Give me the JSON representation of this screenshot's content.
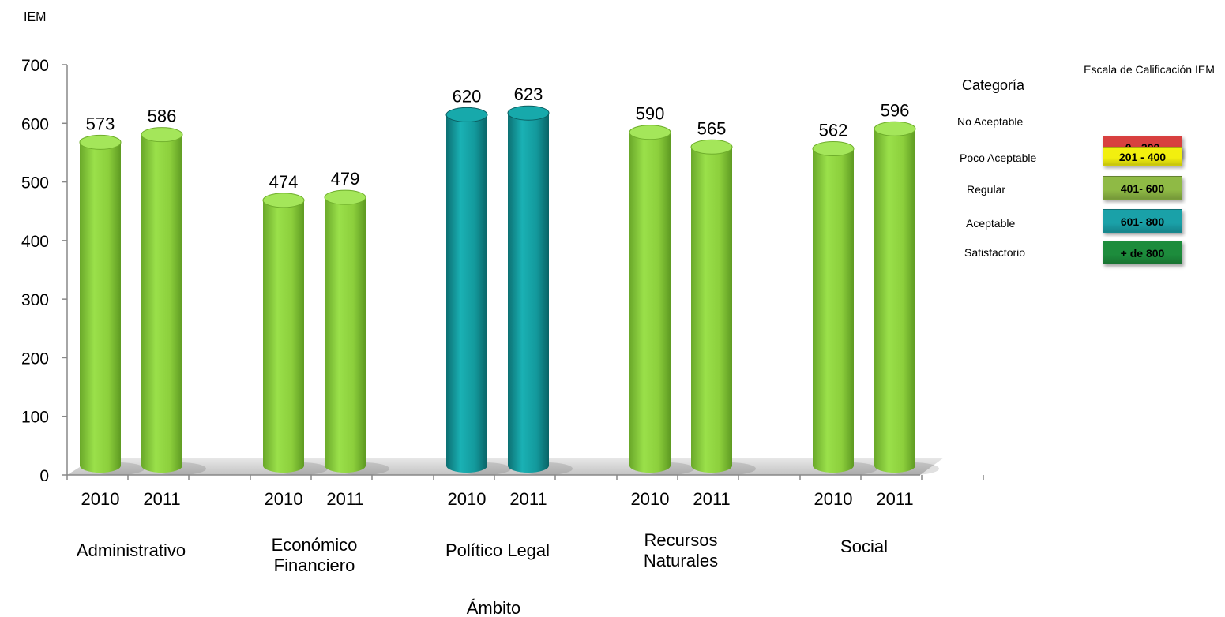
{
  "chart_data": {
    "type": "bar",
    "ylabel": "IEM",
    "xlabel": "Ámbito",
    "ylim": [
      0,
      700
    ],
    "yticks": [
      0,
      100,
      200,
      300,
      400,
      500,
      600,
      700
    ],
    "categories": [
      "Administrativo",
      "Económico Financiero",
      "Político Legal",
      "Recursos Naturales",
      "Social"
    ],
    "category_lines": [
      [
        "Administrativo"
      ],
      [
        "Económico",
        "Financiero"
      ],
      [
        "Político Legal"
      ],
      [
        "Recursos",
        "Naturales"
      ],
      [
        "Social"
      ]
    ],
    "series": [
      {
        "name": "2010",
        "values": [
          573,
          474,
          620,
          590,
          562
        ]
      },
      {
        "name": "2011",
        "values": [
          586,
          479,
          623,
          565,
          596
        ]
      }
    ],
    "bar_colors_by_category": [
      "#8ccf3c",
      "#8ccf3c",
      "#13999c",
      "#8ccf3c",
      "#8ccf3c"
    ],
    "grid": false,
    "legend": {
      "position": "right",
      "scale_title": "Escala de Calificación IEM",
      "category_title": "Categoría",
      "items": [
        {
          "label": "No Aceptable",
          "range": "0 - 200",
          "color": "#d8403f"
        },
        {
          "label": "Poco  Aceptable",
          "range": "201 - 400",
          "color": "#f2ef0f"
        },
        {
          "label": "Regular",
          "range": "401- 600",
          "color": "#8fba45"
        },
        {
          "label": "Aceptable",
          "range": "601- 800",
          "color": "#1aa1a8"
        },
        {
          "label": "Satisfactorio",
          "range": "+ de 800",
          "color": "#1d8c3c"
        }
      ]
    }
  }
}
